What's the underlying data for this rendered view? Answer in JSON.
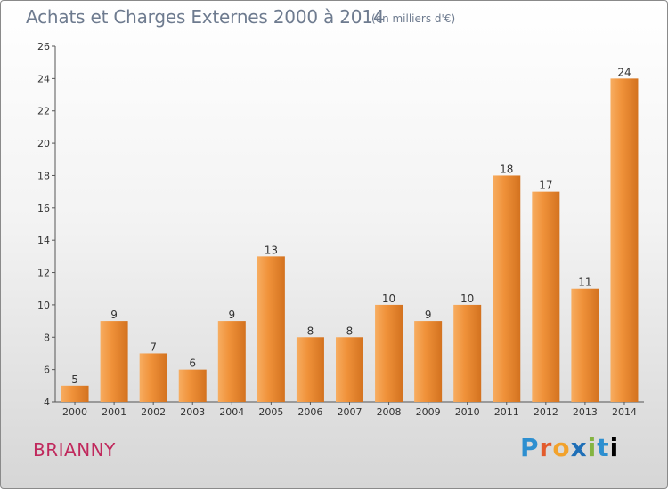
{
  "header": {
    "title": "Achats et Charges Externes 2000 à 2014",
    "subtitle": "(en milliers d'€)"
  },
  "footer": {
    "city": "BRIANNY",
    "logo": "Proxiti"
  },
  "chart_data": {
    "type": "bar",
    "title": "Achats et Charges Externes 2000 à 2014",
    "subtitle": "(en milliers d'€)",
    "categories": [
      "2000",
      "2001",
      "2002",
      "2003",
      "2004",
      "2005",
      "2006",
      "2007",
      "2008",
      "2009",
      "2010",
      "2011",
      "2012",
      "2013",
      "2014"
    ],
    "values": [
      5,
      9,
      7,
      6,
      9,
      13,
      8,
      8,
      10,
      9,
      10,
      18,
      17,
      11,
      24
    ],
    "ylim": [
      4,
      26
    ],
    "yticks": [
      4,
      6,
      8,
      10,
      12,
      14,
      16,
      18,
      20,
      22,
      24,
      26
    ],
    "grid": false,
    "bar_color": "#f0923a",
    "bar_color_light": "#f7ad61",
    "bar_color_dark": "#d3721f"
  }
}
